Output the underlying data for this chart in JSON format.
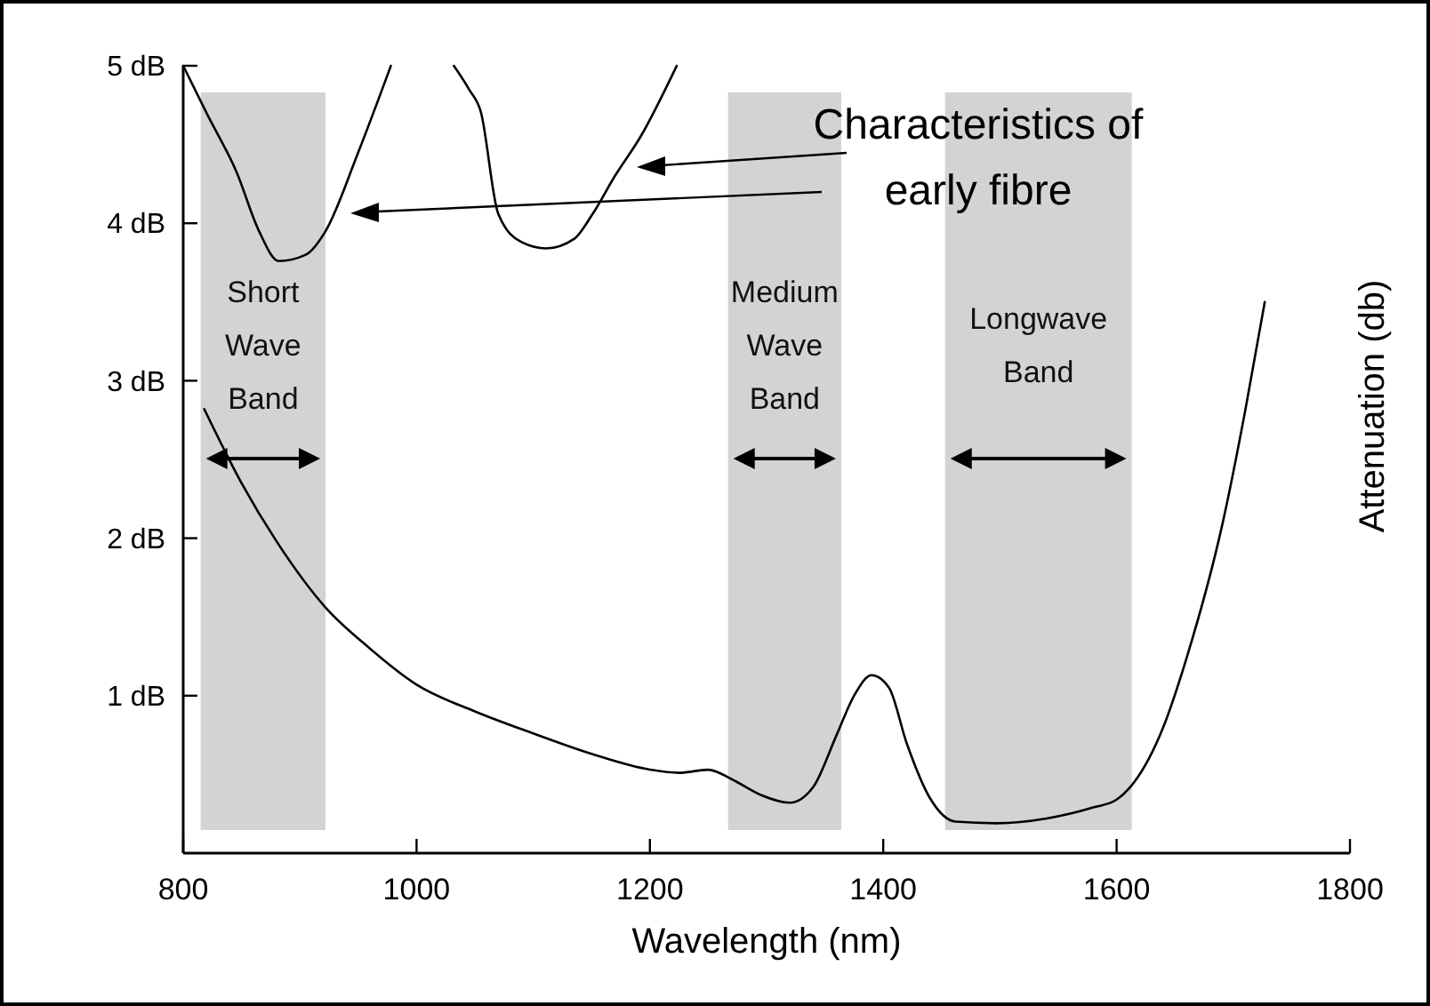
{
  "chart_data": {
    "type": "line",
    "xlabel": "Wavelength (nm)",
    "ylabel": "Attenuation (db)",
    "xlim": [
      800,
      1800
    ],
    "xticks": [
      800,
      1000,
      1200,
      1400,
      1600,
      1800
    ],
    "ylim": [
      0,
      5
    ],
    "yticks": [
      {
        "value": 1,
        "label": "1 dB"
      },
      {
        "value": 2,
        "label": "2 dB"
      },
      {
        "value": 3,
        "label": "3 dB"
      },
      {
        "value": 4,
        "label": "4 dB"
      },
      {
        "value": 5,
        "label": "5 dB"
      }
    ],
    "grid": false,
    "marker": "none",
    "line_style": "solid",
    "series": [
      {
        "color": "#000000",
        "x": [
          818,
          850,
          880,
          922,
          960,
          1000,
          1050,
          1100,
          1150,
          1200,
          1225,
          1250,
          1270,
          1295,
          1320,
          1340,
          1360,
          1375,
          1390,
          1405,
          1420,
          1440,
          1462,
          1497,
          1540,
          1580,
          1600,
          1615,
          1640,
          1660,
          1691,
          1710,
          1727
        ],
        "values": [
          2.82,
          2.35,
          1.98,
          1.56,
          1.3,
          1.07,
          0.9,
          0.76,
          0.63,
          0.53,
          0.51,
          0.53,
          0.47,
          0.37,
          0.32,
          0.42,
          0.75,
          1.0,
          1.13,
          1.05,
          0.7,
          0.35,
          0.2,
          0.19,
          0.22,
          0.29,
          0.34,
          0.45,
          0.8,
          1.24,
          2.1,
          2.8,
          3.5
        ]
      },
      {
        "color": "#000000",
        "x": [
          800,
          820,
          846,
          865,
          882,
          905,
          922,
          950,
          978,
          null,
          1032,
          1045,
          1055,
          1070,
          1090,
          1111,
          1135,
          1151,
          1170,
          1192,
          1223
        ],
        "values": [
          5.0,
          4.7,
          4.32,
          3.95,
          3.76,
          3.8,
          3.95,
          4.45,
          5.0,
          null,
          5.0,
          4.85,
          4.71,
          4.06,
          3.88,
          3.84,
          3.9,
          4.06,
          4.3,
          4.55,
          5.0
        ]
      }
    ],
    "bands": [
      {
        "axis": "x",
        "from": 815,
        "to": 922,
        "label": "Short Wave Band",
        "color": "#d3d3d3"
      },
      {
        "axis": "x",
        "from": 1267,
        "to": 1364,
        "label": "Medium Wave Band",
        "color": "#d3d3d3"
      },
      {
        "axis": "x",
        "from": 1453,
        "to": 1613,
        "label": "Longwave Band",
        "color": "#d3d3d3"
      }
    ],
    "annotations": [
      "Characteristics of early fibre"
    ]
  }
}
